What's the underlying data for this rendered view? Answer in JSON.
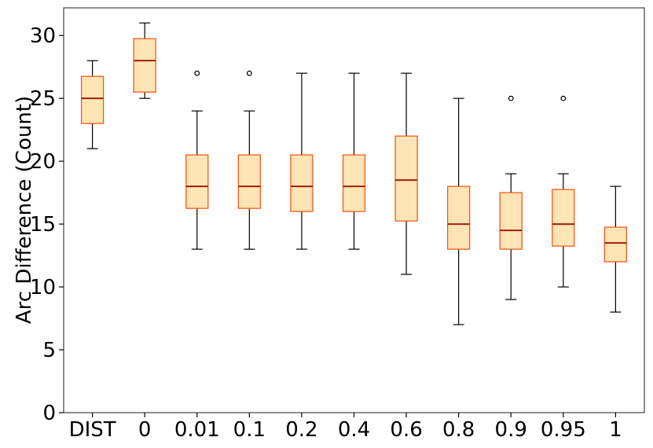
{
  "chart_data": {
    "type": "box",
    "title": "",
    "xlabel": "",
    "ylabel": "Arc Difference (Count)",
    "ylim": [
      0,
      32.2
    ],
    "yticks": [
      0,
      5,
      10,
      15,
      20,
      25,
      30
    ],
    "grid": false,
    "colors": {
      "box_fill": "#ffe4b5",
      "box_edge": "#f05a1e",
      "median": "#a0200a",
      "whisker": "#000000",
      "outlier": "#000000",
      "axis": "#444444"
    },
    "categories": [
      "DIST",
      "0",
      "0.01",
      "0.1",
      "0.2",
      "0.4",
      "0.6",
      "0.8",
      "0.9",
      "0.95",
      "1"
    ],
    "boxes": [
      {
        "label": "DIST",
        "whislo": 21,
        "q1": 23,
        "med": 25,
        "q3": 26.75,
        "whishi": 28,
        "fliers": []
      },
      {
        "label": "0",
        "whislo": 25,
        "q1": 25.5,
        "med": 28,
        "q3": 29.75,
        "whishi": 31,
        "fliers": []
      },
      {
        "label": "0.01",
        "whislo": 13,
        "q1": 16.25,
        "med": 18,
        "q3": 20.5,
        "whishi": 24,
        "fliers": [
          27
        ]
      },
      {
        "label": "0.1",
        "whislo": 13,
        "q1": 16.25,
        "med": 18,
        "q3": 20.5,
        "whishi": 24,
        "fliers": [
          27
        ]
      },
      {
        "label": "0.2",
        "whislo": 13,
        "q1": 16,
        "med": 18,
        "q3": 20.5,
        "whishi": 27,
        "fliers": []
      },
      {
        "label": "0.4",
        "whislo": 13,
        "q1": 16,
        "med": 18,
        "q3": 20.5,
        "whishi": 27,
        "fliers": []
      },
      {
        "label": "0.6",
        "whislo": 11,
        "q1": 15.25,
        "med": 18.5,
        "q3": 22,
        "whishi": 27,
        "fliers": []
      },
      {
        "label": "0.8",
        "whislo": 7,
        "q1": 13,
        "med": 15,
        "q3": 18,
        "whishi": 25,
        "fliers": []
      },
      {
        "label": "0.9",
        "whislo": 9,
        "q1": 13,
        "med": 14.5,
        "q3": 17.5,
        "whishi": 19,
        "fliers": [
          25
        ]
      },
      {
        "label": "0.95",
        "whislo": 10,
        "q1": 13.25,
        "med": 15,
        "q3": 17.75,
        "whishi": 19,
        "fliers": [
          25
        ]
      },
      {
        "label": "1",
        "whislo": 8,
        "q1": 12,
        "med": 13.5,
        "q3": 14.75,
        "whishi": 18,
        "fliers": []
      }
    ]
  }
}
